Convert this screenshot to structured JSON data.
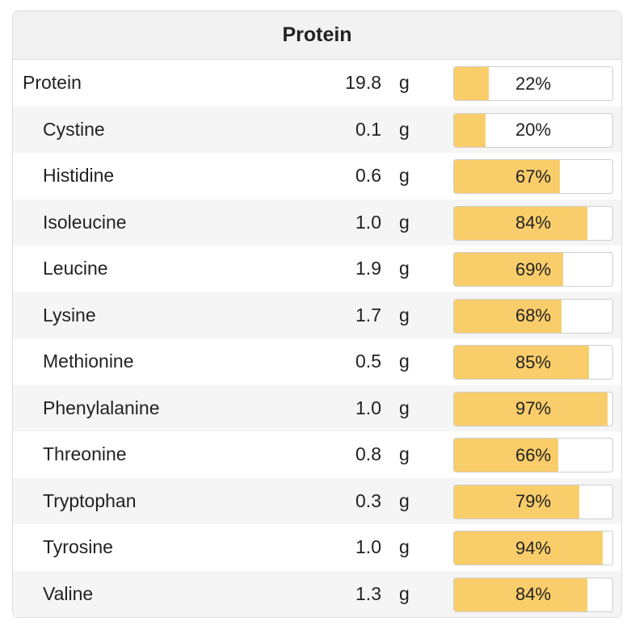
{
  "header": {
    "title": "Protein"
  },
  "colors": {
    "bar_fill": "#f9cd6a",
    "row_alt": "#f5f5f5"
  },
  "rows": [
    {
      "name": "Protein",
      "amount": "19.8",
      "unit": "g",
      "percent_label": "22%",
      "percent": 22,
      "sub": false
    },
    {
      "name": "Cystine",
      "amount": "0.1",
      "unit": "g",
      "percent_label": "20%",
      "percent": 20,
      "sub": true
    },
    {
      "name": "Histidine",
      "amount": "0.6",
      "unit": "g",
      "percent_label": "67%",
      "percent": 67,
      "sub": true
    },
    {
      "name": "Isoleucine",
      "amount": "1.0",
      "unit": "g",
      "percent_label": "84%",
      "percent": 84,
      "sub": true
    },
    {
      "name": "Leucine",
      "amount": "1.9",
      "unit": "g",
      "percent_label": "69%",
      "percent": 69,
      "sub": true
    },
    {
      "name": "Lysine",
      "amount": "1.7",
      "unit": "g",
      "percent_label": "68%",
      "percent": 68,
      "sub": true
    },
    {
      "name": "Methionine",
      "amount": "0.5",
      "unit": "g",
      "percent_label": "85%",
      "percent": 85,
      "sub": true
    },
    {
      "name": "Phenylalanine",
      "amount": "1.0",
      "unit": "g",
      "percent_label": "97%",
      "percent": 97,
      "sub": true
    },
    {
      "name": "Threonine",
      "amount": "0.8",
      "unit": "g",
      "percent_label": "66%",
      "percent": 66,
      "sub": true
    },
    {
      "name": "Tryptophan",
      "amount": "0.3",
      "unit": "g",
      "percent_label": "79%",
      "percent": 79,
      "sub": true
    },
    {
      "name": "Tyrosine",
      "amount": "1.0",
      "unit": "g",
      "percent_label": "94%",
      "percent": 94,
      "sub": true
    },
    {
      "name": "Valine",
      "amount": "1.3",
      "unit": "g",
      "percent_label": "84%",
      "percent": 84,
      "sub": true
    }
  ]
}
